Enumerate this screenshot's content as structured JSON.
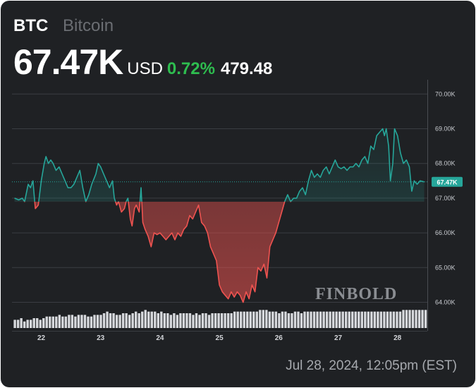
{
  "header": {
    "symbol": "BTC",
    "name": "Bitcoin",
    "price": "67.47K",
    "currency": "USD",
    "change_pct": "0.72%",
    "change_abs": "479.48"
  },
  "timestamp": "Jul 28, 2024, 12:05pm (EST)",
  "watermark": "FINBOLD",
  "colors": {
    "up": "#26a69a",
    "down": "#ef5350",
    "badge": "#26a69a",
    "grid": "#3a3d42",
    "volume": "#d6d8dc",
    "positive_change": "#2ebd4f"
  },
  "chart_data": {
    "type": "line",
    "title": "",
    "xlabel": "",
    "ylabel": "",
    "baseline": 66900,
    "current_value_label": "67.47K",
    "current_value": 67470,
    "ylim": [
      63700,
      70300
    ],
    "y_ticks": [
      70000,
      69000,
      68000,
      67000,
      66000,
      65000,
      64000
    ],
    "y_tick_labels": [
      "70.00K",
      "69.00K",
      "68.00K",
      "67.00K",
      "66.00K",
      "65.00K",
      "64.00K"
    ],
    "xlim": [
      21.55,
      28.52
    ],
    "x_ticks": [
      22,
      23,
      24,
      25,
      26,
      27,
      28
    ],
    "x_tick_labels": [
      "22",
      "23",
      "24",
      "25",
      "26",
      "27",
      "28"
    ],
    "grid": true,
    "points": [
      [
        21.55,
        67.0
      ],
      [
        21.62,
        66.95
      ],
      [
        21.68,
        67.0
      ],
      [
        21.72,
        66.9
      ],
      [
        21.78,
        67.4
      ],
      [
        21.82,
        67.3
      ],
      [
        21.86,
        67.5
      ],
      [
        21.9,
        66.7
      ],
      [
        21.95,
        66.8
      ],
      [
        22.0,
        67.5
      ],
      [
        22.05,
        68.0
      ],
      [
        22.08,
        68.2
      ],
      [
        22.12,
        68.0
      ],
      [
        22.16,
        68.1
      ],
      [
        22.2,
        68.0
      ],
      [
        22.25,
        67.8
      ],
      [
        22.3,
        67.9
      ],
      [
        22.35,
        67.7
      ],
      [
        22.4,
        67.5
      ],
      [
        22.45,
        67.3
      ],
      [
        22.5,
        67.3
      ],
      [
        22.55,
        67.4
      ],
      [
        22.6,
        67.6
      ],
      [
        22.65,
        67.8
      ],
      [
        22.7,
        67.3
      ],
      [
        22.75,
        66.9
      ],
      [
        22.8,
        67.1
      ],
      [
        22.85,
        67.4
      ],
      [
        22.92,
        67.7
      ],
      [
        22.96,
        68.0
      ],
      [
        23.0,
        67.9
      ],
      [
        23.05,
        67.7
      ],
      [
        23.1,
        67.5
      ],
      [
        23.15,
        67.3
      ],
      [
        23.2,
        67.5
      ],
      [
        23.23,
        67.0
      ],
      [
        23.27,
        66.8
      ],
      [
        23.3,
        66.9
      ],
      [
        23.35,
        66.6
      ],
      [
        23.4,
        66.7
      ],
      [
        23.43,
        66.9
      ],
      [
        23.46,
        67.0
      ],
      [
        23.5,
        66.4
      ],
      [
        23.53,
        66.2
      ],
      [
        23.57,
        66.7
      ],
      [
        23.6,
        66.8
      ],
      [
        23.65,
        66.6
      ],
      [
        23.68,
        67.3
      ],
      [
        23.71,
        66.3
      ],
      [
        23.75,
        66.1
      ],
      [
        23.8,
        65.9
      ],
      [
        23.85,
        65.6
      ],
      [
        23.9,
        66.0
      ],
      [
        23.95,
        65.95
      ],
      [
        24.0,
        66.0
      ],
      [
        24.05,
        65.9
      ],
      [
        24.1,
        65.8
      ],
      [
        24.15,
        65.9
      ],
      [
        24.2,
        66.0
      ],
      [
        24.25,
        65.8
      ],
      [
        24.3,
        66.0
      ],
      [
        24.35,
        65.9
      ],
      [
        24.4,
        66.1
      ],
      [
        24.45,
        66.2
      ],
      [
        24.5,
        66.5
      ],
      [
        24.55,
        66.4
      ],
      [
        24.6,
        66.6
      ],
      [
        24.65,
        66.8
      ],
      [
        24.7,
        66.3
      ],
      [
        24.75,
        66.2
      ],
      [
        24.8,
        66.0
      ],
      [
        24.85,
        65.6
      ],
      [
        24.9,
        65.4
      ],
      [
        24.95,
        65.2
      ],
      [
        25.0,
        64.5
      ],
      [
        25.05,
        64.3
      ],
      [
        25.1,
        64.2
      ],
      [
        25.15,
        64.1
      ],
      [
        25.2,
        64.3
      ],
      [
        25.25,
        64.15
      ],
      [
        25.3,
        64.3
      ],
      [
        25.35,
        64.2
      ],
      [
        25.4,
        64.0
      ],
      [
        25.45,
        64.3
      ],
      [
        25.5,
        64.1
      ],
      [
        25.55,
        64.5
      ],
      [
        25.6,
        64.3
      ],
      [
        25.65,
        65.0
      ],
      [
        25.7,
        64.9
      ],
      [
        25.75,
        65.1
      ],
      [
        25.8,
        64.7
      ],
      [
        25.85,
        65.6
      ],
      [
        25.9,
        65.8
      ],
      [
        25.95,
        66.0
      ],
      [
        26.0,
        66.3
      ],
      [
        26.05,
        66.6
      ],
      [
        26.1,
        66.9
      ],
      [
        26.15,
        67.1
      ],
      [
        26.2,
        66.9
      ],
      [
        26.25,
        67.0
      ],
      [
        26.3,
        67.0
      ],
      [
        26.35,
        67.2
      ],
      [
        26.4,
        67.3
      ],
      [
        26.45,
        67.1
      ],
      [
        26.5,
        67.5
      ],
      [
        26.55,
        67.8
      ],
      [
        26.6,
        67.6
      ],
      [
        26.65,
        67.7
      ],
      [
        26.7,
        67.6
      ],
      [
        26.75,
        67.8
      ],
      [
        26.8,
        67.9
      ],
      [
        26.85,
        67.7
      ],
      [
        26.9,
        67.9
      ],
      [
        26.95,
        68.1
      ],
      [
        27.0,
        67.9
      ],
      [
        27.05,
        67.85
      ],
      [
        27.1,
        67.9
      ],
      [
        27.15,
        67.8
      ],
      [
        27.2,
        67.9
      ],
      [
        27.25,
        67.9
      ],
      [
        27.3,
        68.0
      ],
      [
        27.35,
        67.9
      ],
      [
        27.4,
        68.1
      ],
      [
        27.45,
        68.2
      ],
      [
        27.5,
        68.0
      ],
      [
        27.55,
        68.5
      ],
      [
        27.6,
        68.4
      ],
      [
        27.65,
        68.8
      ],
      [
        27.7,
        68.9
      ],
      [
        27.75,
        69.0
      ],
      [
        27.78,
        68.8
      ],
      [
        27.81,
        69.0
      ],
      [
        27.85,
        68.5
      ],
      [
        27.88,
        67.5
      ],
      [
        27.92,
        68.0
      ],
      [
        27.95,
        69.0
      ],
      [
        28.0,
        68.8
      ],
      [
        28.05,
        68.3
      ],
      [
        28.1,
        68.0
      ],
      [
        28.15,
        68.1
      ],
      [
        28.2,
        67.9
      ],
      [
        28.24,
        67.2
      ],
      [
        28.28,
        67.5
      ],
      [
        28.33,
        67.4
      ],
      [
        28.38,
        67.5
      ],
      [
        28.45,
        67.47
      ]
    ],
    "volume": [
      5,
      5,
      6,
      4,
      5,
      5,
      6,
      6,
      5,
      6,
      7,
      7,
      7,
      7,
      8,
      7,
      7,
      8,
      8,
      7,
      8,
      8,
      8,
      7,
      7,
      8,
      8,
      8,
      9,
      10,
      9,
      9,
      8,
      8,
      9,
      9,
      8,
      9,
      10,
      9,
      10,
      11,
      10,
      10,
      10,
      9,
      10,
      9,
      9,
      8,
      9,
      8,
      9,
      9,
      9,
      9,
      8,
      9,
      8,
      9,
      9,
      8,
      9,
      9,
      9,
      9,
      9,
      9,
      9,
      10,
      10,
      10,
      10,
      10,
      10,
      10,
      10,
      11,
      11,
      11,
      10,
      10,
      10,
      9,
      10,
      10,
      9,
      9,
      10,
      10,
      9,
      10,
      10,
      10,
      10,
      10,
      10,
      10,
      10,
      10,
      10,
      10,
      10,
      10,
      10,
      10,
      10,
      10,
      10,
      10,
      10,
      10,
      10,
      10,
      10,
      10,
      10,
      10,
      10,
      10,
      10,
      10,
      11,
      11,
      11,
      11,
      11,
      11,
      11,
      11
    ]
  }
}
